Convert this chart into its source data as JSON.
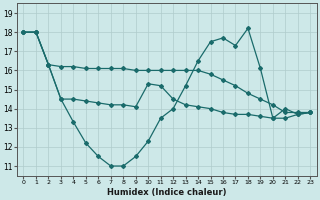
{
  "xlabel": "Humidex (Indice chaleur)",
  "background_color": "#cde8e8",
  "grid_color": "#b0cccc",
  "line_color": "#1a6b6b",
  "xlim": [
    -0.5,
    23.5
  ],
  "ylim": [
    10.5,
    19.5
  ],
  "xticks": [
    0,
    1,
    2,
    3,
    4,
    5,
    6,
    7,
    8,
    9,
    10,
    11,
    12,
    13,
    14,
    15,
    16,
    17,
    18,
    19,
    20,
    21,
    22,
    23
  ],
  "yticks": [
    11,
    12,
    13,
    14,
    15,
    16,
    17,
    18,
    19
  ],
  "series": [
    {
      "x": [
        0,
        1,
        2,
        3,
        4,
        5,
        6,
        7,
        8,
        9,
        10,
        11,
        12,
        13,
        14,
        15,
        16,
        17,
        18,
        19,
        20,
        21,
        22,
        23
      ],
      "y": [
        18,
        18,
        16.3,
        14.5,
        13.3,
        12.2,
        11.5,
        11.0,
        11.0,
        11.5,
        12.3,
        13.5,
        14.0,
        15.2,
        16.5,
        17.5,
        17.7,
        17.3,
        18.2,
        16.1,
        13.5,
        13.5,
        13.7,
        13.8
      ]
    },
    {
      "x": [
        0,
        1,
        2,
        3,
        4,
        5,
        6,
        7,
        8,
        9,
        10,
        11,
        12,
        13,
        14,
        15,
        16,
        17,
        18,
        19,
        20,
        21,
        22,
        23
      ],
      "y": [
        18,
        18,
        16.3,
        16.2,
        16.2,
        16.1,
        16.1,
        16.1,
        16.1,
        16.0,
        16.0,
        16.0,
        16.0,
        16.0,
        16.0,
        15.8,
        15.5,
        15.2,
        14.8,
        14.5,
        14.2,
        13.8,
        13.8,
        13.8
      ]
    },
    {
      "x": [
        0,
        1,
        2,
        3,
        4,
        5,
        6,
        7,
        8,
        9,
        10,
        11,
        12,
        13,
        14,
        15,
        16,
        17,
        18,
        19,
        20,
        21,
        22,
        23
      ],
      "y": [
        18,
        18,
        16.3,
        14.5,
        14.5,
        14.4,
        14.3,
        14.2,
        14.2,
        14.1,
        15.3,
        15.2,
        14.5,
        14.2,
        14.1,
        14.0,
        13.8,
        13.7,
        13.7,
        13.6,
        13.5,
        14.0,
        13.7,
        13.8
      ]
    }
  ]
}
